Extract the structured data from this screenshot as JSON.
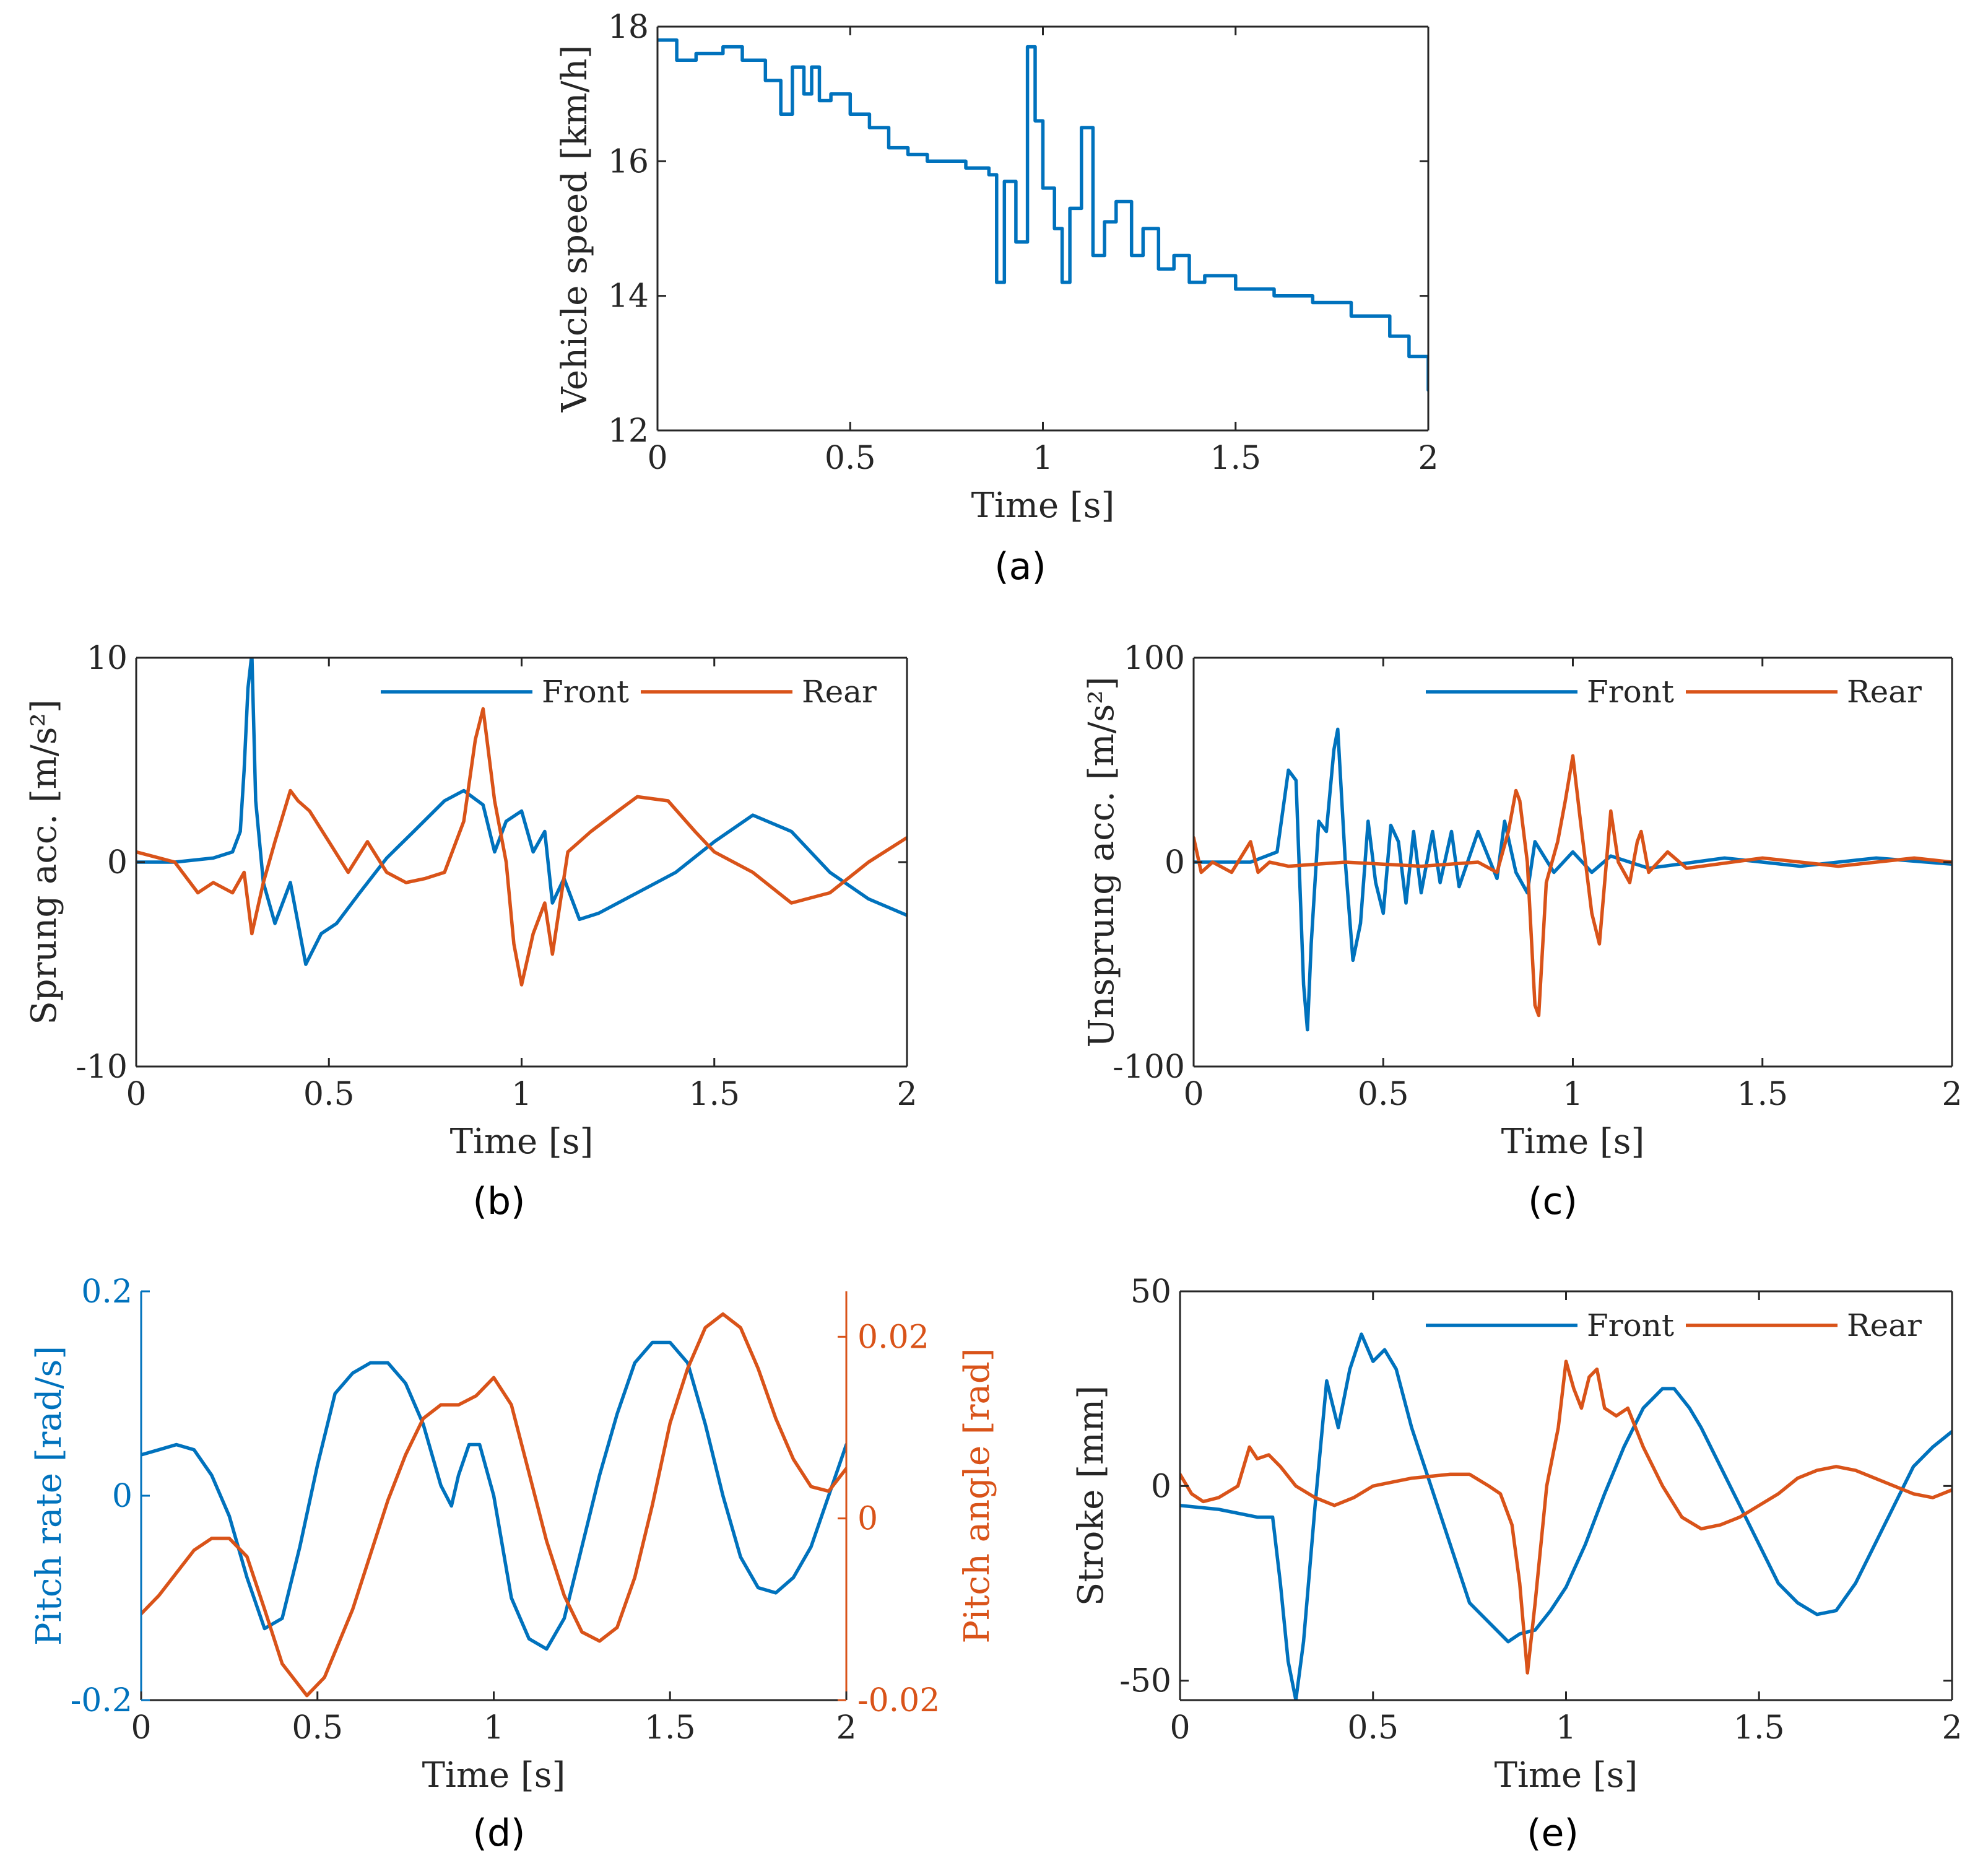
{
  "colors": {
    "front": "#0072BD",
    "rear": "#D95319",
    "axis": "#262626"
  },
  "chart_data": [
    {
      "id": "a",
      "type": "line",
      "panel_label": "(a)",
      "xlabel": "Time [s]",
      "ylabel": "Vehicle speed [km/h]",
      "xlim": [
        0,
        2
      ],
      "ylim": [
        12,
        18
      ],
      "xticks": [
        0,
        0.5,
        1,
        1.5,
        2
      ],
      "xtick_labels": [
        "0",
        "0.5",
        "1",
        "1.5",
        "2"
      ],
      "yticks": [
        12,
        14,
        16,
        18
      ],
      "ytick_labels": [
        "12",
        "14",
        "16",
        "18"
      ],
      "step": true,
      "series": [
        {
          "name": "Vehicle speed",
          "color": "#0072BD",
          "x": [
            0,
            0.05,
            0.1,
            0.17,
            0.22,
            0.28,
            0.32,
            0.35,
            0.38,
            0.4,
            0.42,
            0.45,
            0.5,
            0.55,
            0.6,
            0.65,
            0.7,
            0.8,
            0.86,
            0.88,
            0.9,
            0.93,
            0.96,
            0.98,
            1.0,
            1.03,
            1.05,
            1.07,
            1.1,
            1.13,
            1.16,
            1.19,
            1.23,
            1.26,
            1.3,
            1.34,
            1.38,
            1.42,
            1.5,
            1.6,
            1.7,
            1.8,
            1.9,
            1.95,
            2.0
          ],
          "y": [
            17.8,
            17.5,
            17.6,
            17.7,
            17.5,
            17.2,
            16.7,
            17.4,
            17.0,
            17.4,
            16.9,
            17.0,
            16.7,
            16.5,
            16.2,
            16.1,
            16.0,
            15.9,
            15.8,
            14.2,
            15.7,
            14.8,
            17.7,
            16.6,
            15.6,
            15.0,
            14.2,
            15.3,
            16.5,
            14.6,
            15.1,
            15.4,
            14.6,
            15.0,
            14.4,
            14.6,
            14.2,
            14.3,
            14.1,
            14.0,
            13.9,
            13.7,
            13.4,
            13.1,
            12.6
          ]
        }
      ]
    },
    {
      "id": "b",
      "type": "line",
      "panel_label": "(b)",
      "xlabel": "Time [s]",
      "ylabel": "Sprung acc. [m/s²]",
      "xlim": [
        0,
        2
      ],
      "ylim": [
        -10,
        10
      ],
      "xticks": [
        0,
        0.5,
        1,
        1.5,
        2
      ],
      "xtick_labels": [
        "0",
        "0.5",
        "1",
        "1.5",
        "2"
      ],
      "yticks": [
        -10,
        0,
        10
      ],
      "ytick_labels": [
        "-10",
        "0",
        "10"
      ],
      "legend": {
        "position": "top-right",
        "entries": [
          "Front",
          "Rear"
        ]
      },
      "series": [
        {
          "name": "Front",
          "color": "#0072BD",
          "x": [
            0,
            0.1,
            0.2,
            0.25,
            0.27,
            0.28,
            0.29,
            0.3,
            0.31,
            0.33,
            0.36,
            0.4,
            0.44,
            0.48,
            0.52,
            0.58,
            0.65,
            0.72,
            0.8,
            0.85,
            0.9,
            0.93,
            0.96,
            1.0,
            1.03,
            1.06,
            1.08,
            1.11,
            1.15,
            1.2,
            1.3,
            1.4,
            1.5,
            1.6,
            1.7,
            1.8,
            1.9,
            2.0
          ],
          "y": [
            0,
            0,
            0.2,
            0.5,
            1.5,
            4.5,
            8.5,
            10.2,
            3.0,
            -1.0,
            -3.0,
            -1.0,
            -5.0,
            -3.5,
            -3.0,
            -1.5,
            0.2,
            1.5,
            3.0,
            3.5,
            2.8,
            0.5,
            2.0,
            2.5,
            0.5,
            1.5,
            -2.0,
            -0.8,
            -2.8,
            -2.5,
            -1.5,
            -0.5,
            1.0,
            2.3,
            1.5,
            -0.5,
            -1.8,
            -2.6
          ]
        },
        {
          "name": "Rear",
          "color": "#D95319",
          "x": [
            0,
            0.1,
            0.16,
            0.2,
            0.25,
            0.28,
            0.3,
            0.33,
            0.36,
            0.4,
            0.42,
            0.45,
            0.5,
            0.55,
            0.6,
            0.65,
            0.7,
            0.75,
            0.8,
            0.85,
            0.88,
            0.9,
            0.93,
            0.96,
            0.98,
            1.0,
            1.03,
            1.06,
            1.08,
            1.12,
            1.18,
            1.25,
            1.3,
            1.38,
            1.45,
            1.5,
            1.6,
            1.7,
            1.8,
            1.9,
            2.0
          ],
          "y": [
            0.5,
            0,
            -1.5,
            -1.0,
            -1.5,
            -0.5,
            -3.5,
            -1.0,
            1.0,
            3.5,
            3.0,
            2.5,
            1.0,
            -0.5,
            1.0,
            -0.5,
            -1.0,
            -0.8,
            -0.5,
            2.0,
            6.0,
            7.5,
            3.0,
            0,
            -4.0,
            -6.0,
            -3.5,
            -2.0,
            -4.5,
            0.5,
            1.5,
            2.5,
            3.2,
            3.0,
            1.5,
            0.5,
            -0.5,
            -2.0,
            -1.5,
            0,
            1.2
          ]
        }
      ]
    },
    {
      "id": "c",
      "type": "line",
      "panel_label": "(c)",
      "xlabel": "Time [s]",
      "ylabel": "Unsprung acc. [m/s²]",
      "xlim": [
        0,
        2
      ],
      "ylim": [
        -100,
        100
      ],
      "xticks": [
        0,
        0.5,
        1,
        1.5,
        2
      ],
      "xtick_labels": [
        "0",
        "0.5",
        "1",
        "1.5",
        "2"
      ],
      "yticks": [
        -100,
        0,
        100
      ],
      "ytick_labels": [
        "-100",
        "0",
        "100"
      ],
      "legend": {
        "position": "top-right",
        "entries": [
          "Front",
          "Rear"
        ]
      },
      "series": [
        {
          "name": "Front",
          "color": "#0072BD",
          "x": [
            0,
            0.15,
            0.22,
            0.25,
            0.27,
            0.29,
            0.3,
            0.31,
            0.33,
            0.35,
            0.37,
            0.38,
            0.4,
            0.42,
            0.44,
            0.46,
            0.48,
            0.5,
            0.52,
            0.54,
            0.56,
            0.58,
            0.6,
            0.63,
            0.65,
            0.68,
            0.7,
            0.75,
            0.8,
            0.82,
            0.85,
            0.88,
            0.9,
            0.95,
            1.0,
            1.05,
            1.1,
            1.2,
            1.4,
            1.6,
            1.8,
            2.0
          ],
          "y": [
            0,
            0,
            5,
            45,
            40,
            -60,
            -82,
            -40,
            20,
            15,
            55,
            65,
            0,
            -48,
            -30,
            20,
            -10,
            -25,
            18,
            10,
            -20,
            15,
            -15,
            15,
            -10,
            15,
            -12,
            15,
            -8,
            20,
            -5,
            -15,
            10,
            -5,
            5,
            -5,
            3,
            -3,
            2,
            -2,
            2,
            -1
          ]
        },
        {
          "name": "Rear",
          "color": "#D95319",
          "x": [
            0,
            0.02,
            0.05,
            0.1,
            0.15,
            0.17,
            0.2,
            0.25,
            0.4,
            0.6,
            0.75,
            0.8,
            0.83,
            0.85,
            0.86,
            0.88,
            0.9,
            0.91,
            0.93,
            0.96,
            0.98,
            1.0,
            1.02,
            1.05,
            1.07,
            1.1,
            1.12,
            1.15,
            1.17,
            1.18,
            1.2,
            1.25,
            1.3,
            1.5,
            1.7,
            1.9,
            2.0
          ],
          "y": [
            12,
            -5,
            0,
            -5,
            10,
            -5,
            0,
            -2,
            0,
            -2,
            0,
            -5,
            15,
            35,
            30,
            0,
            -70,
            -75,
            -10,
            10,
            30,
            52,
            20,
            -25,
            -40,
            25,
            0,
            -10,
            10,
            15,
            -5,
            5,
            -3,
            2,
            -2,
            2,
            0
          ]
        }
      ]
    },
    {
      "id": "d",
      "type": "line",
      "panel_label": "(d)",
      "xlabel": "Time [s]",
      "ylabel": "Pitch rate [rad/s]",
      "ylabel_right": "Pitch angle [rad]",
      "xlim": [
        0,
        2
      ],
      "ylim": [
        -0.2,
        0.2
      ],
      "ylim_right": [
        -0.02,
        0.025
      ],
      "xticks": [
        0,
        0.5,
        1,
        1.5,
        2
      ],
      "xtick_labels": [
        "0",
        "0.5",
        "1",
        "1.5",
        "2"
      ],
      "yticks": [
        -0.2,
        0,
        0.2
      ],
      "ytick_labels": [
        "-0.2",
        "0",
        "0.2"
      ],
      "yticks_right": [
        -0.02,
        0,
        0.02
      ],
      "ytick_labels_right": [
        "-0.02",
        "0",
        "0.02"
      ],
      "series": [
        {
          "name": "Pitch rate",
          "axis": "left",
          "color": "#0072BD",
          "x": [
            0,
            0.05,
            0.1,
            0.15,
            0.2,
            0.25,
            0.3,
            0.35,
            0.4,
            0.45,
            0.5,
            0.55,
            0.6,
            0.65,
            0.7,
            0.75,
            0.8,
            0.85,
            0.88,
            0.9,
            0.93,
            0.96,
            1.0,
            1.05,
            1.1,
            1.15,
            1.2,
            1.25,
            1.3,
            1.35,
            1.4,
            1.45,
            1.5,
            1.55,
            1.6,
            1.65,
            1.7,
            1.75,
            1.8,
            1.85,
            1.9,
            1.95,
            2.0
          ],
          "y": [
            0.04,
            0.045,
            0.05,
            0.045,
            0.02,
            -0.02,
            -0.08,
            -0.13,
            -0.12,
            -0.05,
            0.03,
            0.1,
            0.12,
            0.13,
            0.13,
            0.11,
            0.07,
            0.01,
            -0.01,
            0.02,
            0.05,
            0.05,
            0.0,
            -0.1,
            -0.14,
            -0.15,
            -0.12,
            -0.05,
            0.02,
            0.08,
            0.13,
            0.15,
            0.15,
            0.13,
            0.07,
            0.0,
            -0.06,
            -0.09,
            -0.095,
            -0.08,
            -0.05,
            0.0,
            0.05
          ]
        },
        {
          "name": "Pitch angle",
          "axis": "right",
          "color": "#D95319",
          "x": [
            0,
            0.05,
            0.1,
            0.15,
            0.2,
            0.25,
            0.3,
            0.35,
            0.4,
            0.47,
            0.52,
            0.6,
            0.7,
            0.75,
            0.8,
            0.85,
            0.9,
            0.95,
            1.0,
            1.05,
            1.1,
            1.15,
            1.2,
            1.25,
            1.3,
            1.35,
            1.4,
            1.45,
            1.5,
            1.55,
            1.6,
            1.65,
            1.7,
            1.75,
            1.8,
            1.85,
            1.9,
            1.95,
            2.0
          ],
          "y": [
            -0.0105,
            -0.0085,
            -0.006,
            -0.0035,
            -0.0022,
            -0.0022,
            -0.0042,
            -0.01,
            -0.016,
            -0.0195,
            -0.0175,
            -0.01,
            0.002,
            0.007,
            0.011,
            0.0125,
            0.0125,
            0.0135,
            0.0155,
            0.0125,
            0.005,
            -0.0025,
            -0.0085,
            -0.0125,
            -0.0135,
            -0.012,
            -0.0065,
            0.0015,
            0.0105,
            0.0165,
            0.021,
            0.0225,
            0.021,
            0.0165,
            0.011,
            0.0065,
            0.0035,
            0.003,
            0.0055
          ]
        }
      ]
    },
    {
      "id": "e",
      "type": "line",
      "panel_label": "(e)",
      "xlabel": "Time [s]",
      "ylabel": "Stroke [mm]",
      "xlim": [
        0,
        2
      ],
      "ylim": [
        -55,
        50
      ],
      "xticks": [
        0,
        0.5,
        1,
        1.5,
        2
      ],
      "xtick_labels": [
        "0",
        "0.5",
        "1",
        "1.5",
        "2"
      ],
      "yticks": [
        -50,
        0,
        50
      ],
      "ytick_labels": [
        "-50",
        "0",
        "50"
      ],
      "legend": {
        "position": "top-right",
        "entries": [
          "Front",
          "Rear"
        ]
      },
      "series": [
        {
          "name": "Front",
          "color": "#0072BD",
          "x": [
            0,
            0.1,
            0.2,
            0.24,
            0.26,
            0.28,
            0.3,
            0.32,
            0.35,
            0.38,
            0.41,
            0.44,
            0.47,
            0.5,
            0.53,
            0.56,
            0.6,
            0.65,
            0.7,
            0.75,
            0.8,
            0.85,
            0.88,
            0.92,
            0.96,
            1.0,
            1.05,
            1.1,
            1.15,
            1.2,
            1.25,
            1.28,
            1.32,
            1.35,
            1.4,
            1.45,
            1.5,
            1.55,
            1.6,
            1.65,
            1.7,
            1.75,
            1.8,
            1.85,
            1.9,
            1.95,
            2.0
          ],
          "y": [
            -5,
            -6,
            -8,
            -8,
            -25,
            -45,
            -55,
            -40,
            -5,
            27,
            15,
            30,
            39,
            32,
            35,
            30,
            15,
            0,
            -15,
            -30,
            -35,
            -40,
            -38,
            -37,
            -32,
            -26,
            -15,
            -2,
            10,
            20,
            25,
            25,
            20,
            15,
            5,
            -5,
            -15,
            -25,
            -30,
            -33,
            -32,
            -25,
            -15,
            -5,
            5,
            10,
            14
          ]
        },
        {
          "name": "Rear",
          "color": "#D95319",
          "x": [
            0,
            0.03,
            0.06,
            0.1,
            0.15,
            0.18,
            0.2,
            0.23,
            0.26,
            0.3,
            0.35,
            0.4,
            0.45,
            0.5,
            0.6,
            0.7,
            0.75,
            0.8,
            0.83,
            0.86,
            0.88,
            0.9,
            0.92,
            0.95,
            0.98,
            1.0,
            1.02,
            1.04,
            1.06,
            1.08,
            1.1,
            1.13,
            1.16,
            1.2,
            1.25,
            1.3,
            1.35,
            1.4,
            1.45,
            1.5,
            1.55,
            1.6,
            1.65,
            1.7,
            1.75,
            1.8,
            1.85,
            1.9,
            1.95,
            2.0
          ],
          "y": [
            3,
            -2,
            -4,
            -3,
            0,
            10,
            7,
            8,
            5,
            0,
            -3,
            -5,
            -3,
            0,
            2,
            3,
            3,
            0,
            -2,
            -10,
            -25,
            -48,
            -30,
            0,
            15,
            32,
            25,
            20,
            28,
            30,
            20,
            18,
            20,
            10,
            0,
            -8,
            -11,
            -10,
            -8,
            -5,
            -2,
            2,
            4,
            5,
            4,
            2,
            0,
            -2,
            -3,
            -1
          ]
        }
      ]
    }
  ]
}
